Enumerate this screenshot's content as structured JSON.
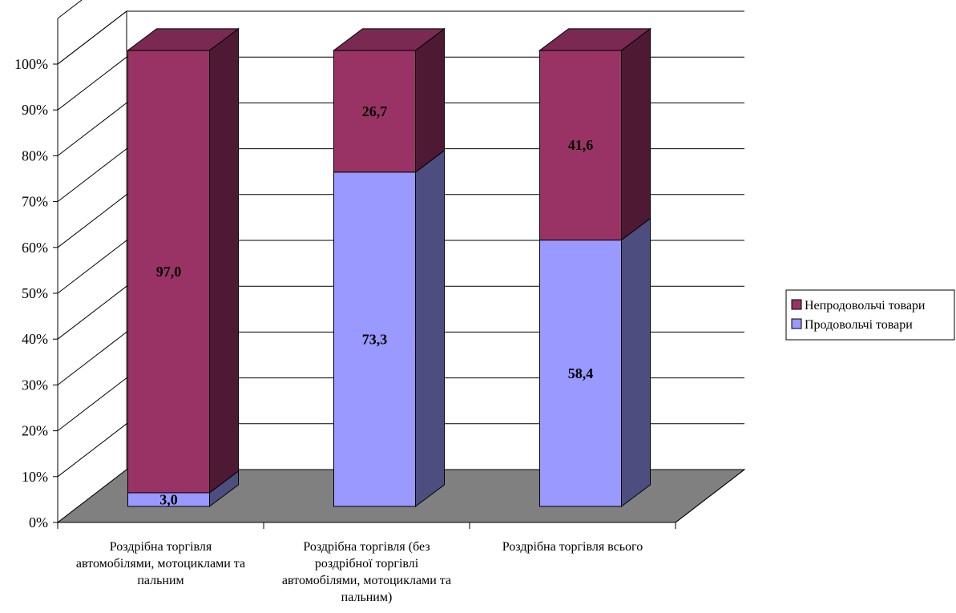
{
  "chart_data": {
    "type": "bar",
    "stacked": "percent",
    "three_d": true,
    "categories": [
      [
        "Роздрібна торгівля",
        "автомобілями, мотоциклами та",
        "пальним"
      ],
      [
        "Роздрібна торгівля (без",
        "роздрібної торгівлі",
        "автомобілями, мотоциклами та",
        "пальним)"
      ],
      [
        "Роздрібна торгівля всього"
      ]
    ],
    "series": [
      {
        "name": "Продовольчі товари",
        "values": [
          3.0,
          73.3,
          58.4
        ],
        "labels": [
          "3,0",
          "73,3",
          "58,4"
        ],
        "color": "#9999FF",
        "side": "#4D4D80",
        "top": "#CCCCFF"
      },
      {
        "name": "Непродовольчі товари",
        "values": [
          97.0,
          26.7,
          41.6
        ],
        "labels": [
          "97,0",
          "26,7",
          "41,6"
        ],
        "color": "#993366",
        "side": "#4D1933",
        "top": "#7A2952"
      }
    ],
    "y_ticks": [
      "0%",
      "10%",
      "20%",
      "30%",
      "40%",
      "50%",
      "60%",
      "70%",
      "80%",
      "90%",
      "100%"
    ],
    "ylim": [
      0,
      100
    ],
    "grid": true,
    "floor_color": "#808080",
    "legend_position": "right",
    "legend_order": [
      "Непродовольчі товари",
      "Продовольчі товари"
    ]
  }
}
